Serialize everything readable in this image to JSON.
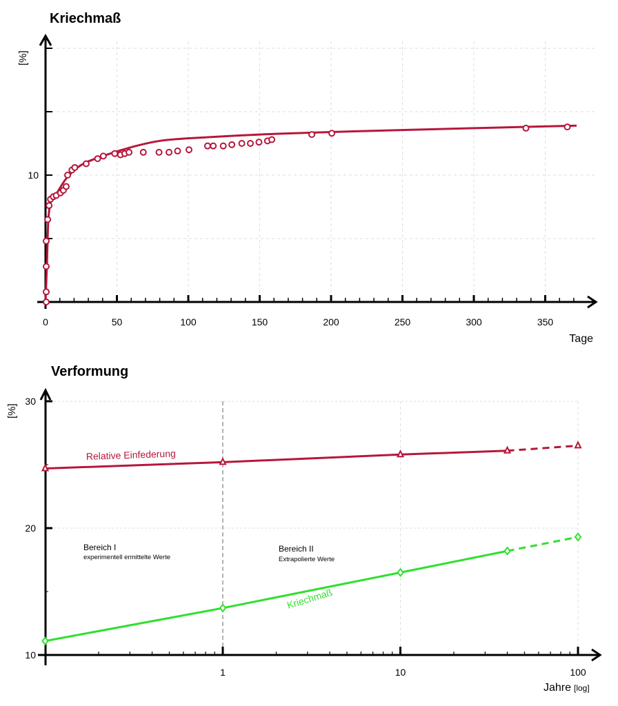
{
  "chart_data": [
    {
      "type": "scatter",
      "title": "Kriechmaß",
      "xlabel": "Tage",
      "ylabel": "[%]",
      "xlim": [
        0,
        375
      ],
      "ylim": [
        0,
        20
      ],
      "x_ticks": [
        0,
        50,
        100,
        150,
        200,
        250,
        300,
        350
      ],
      "y_tick_labels": [
        "10"
      ],
      "grid": true,
      "color": "#b5173a",
      "points": {
        "x": [
          0,
          0,
          0,
          0,
          1,
          2,
          3,
          5,
          7,
          10,
          12,
          14,
          15,
          18,
          20,
          28,
          36,
          40,
          48,
          52,
          55,
          58,
          68,
          79,
          86,
          92,
          100,
          113,
          117,
          124,
          130,
          137,
          143,
          149,
          155,
          158,
          186,
          200,
          336,
          365
        ],
        "y": [
          0,
          0.8,
          2.8,
          4.8,
          6.5,
          7.6,
          8.1,
          8.3,
          8.4,
          8.6,
          8.8,
          9.1,
          10.0,
          10.4,
          10.6,
          10.9,
          11.3,
          11.5,
          11.7,
          11.6,
          11.7,
          11.8,
          11.8,
          11.8,
          11.8,
          11.9,
          12.0,
          12.3,
          12.3,
          12.3,
          12.4,
          12.5,
          12.5,
          12.6,
          12.7,
          12.8,
          13.2,
          13.3,
          13.7,
          13.8
        ]
      },
      "fit_curve": {
        "x": [
          0,
          1,
          2,
          4,
          8,
          15,
          25,
          40,
          60,
          80,
          100,
          150,
          200,
          300,
          372
        ],
        "y": [
          0,
          3,
          6.5,
          8,
          8.6,
          9.8,
          10.8,
          11.5,
          12.2,
          12.7,
          12.9,
          13.2,
          13.4,
          13.7,
          13.9
        ]
      }
    },
    {
      "type": "line",
      "title": "Verformung",
      "xlabel": "Jahre",
      "xlabel_unit": "[log]",
      "ylabel": "[%]",
      "x_scale": "log",
      "xlim": [
        0.1,
        100
      ],
      "ylim": [
        10,
        30
      ],
      "x_ticks": [
        "1",
        "10",
        "100"
      ],
      "y_ticks": [
        "10",
        "20",
        "30"
      ],
      "grid": true,
      "series": [
        {
          "name": "Relative Einfederung",
          "color": "#b5173a",
          "marker": "triangle",
          "x": [
            0.1,
            1,
            10,
            40,
            100
          ],
          "y": [
            24.7,
            25.2,
            25.8,
            26.1,
            26.5
          ],
          "dashed_from": 40
        },
        {
          "name": "Kriechmaß",
          "color": "#2ee02e",
          "marker": "diamond",
          "x": [
            0.1,
            1,
            10,
            40,
            100
          ],
          "y": [
            11.1,
            13.7,
            16.5,
            18.2,
            19.3
          ],
          "dashed_from": 40
        }
      ],
      "annotations": [
        {
          "title": "Bereich I",
          "text": "experimentell ermittelte Werte"
        },
        {
          "title": "Bereich II",
          "text": "Extrapolierte Werte"
        }
      ]
    }
  ]
}
